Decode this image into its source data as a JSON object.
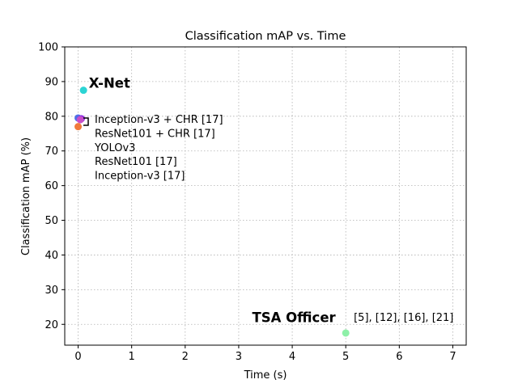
{
  "chart_data": {
    "type": "scatter",
    "title": "Classification mAP vs. Time",
    "xlabel": "Time (s)",
    "ylabel": "Classification mAP (%)",
    "xlim": [
      -0.25,
      7.25
    ],
    "ylim": [
      14,
      100
    ],
    "x_ticks": [
      0,
      1,
      2,
      3,
      4,
      5,
      6,
      7
    ],
    "y_ticks": [
      20,
      30,
      40,
      50,
      60,
      70,
      80,
      90,
      100
    ],
    "grid": true,
    "grid_style": "dotted",
    "points": [
      {
        "x": 0.1,
        "y": 87.5,
        "color": "#2bd4d4"
      },
      {
        "x": 0.0,
        "y": 79.5,
        "color": "#4f6fe8"
      },
      {
        "x": 0.06,
        "y": 79.3,
        "color": "#8a2be2"
      },
      {
        "x": 0.04,
        "y": 79.0,
        "color": "#c84fc8"
      },
      {
        "x": 0.0,
        "y": 77.0,
        "color": "#f07a3c"
      },
      {
        "x": 5.0,
        "y": 17.5,
        "color": "#8ef0a8"
      }
    ],
    "annotations": [
      {
        "text": "X-Net",
        "style": "bold",
        "x": 0.2,
        "y": 88.2
      },
      {
        "text": "TSA Officer",
        "style": "bold",
        "x": 3.25,
        "y": 20.6
      },
      {
        "text": "[5], [12], [16], [21]",
        "style": "normal",
        "x": 5.15,
        "y": 21.0
      }
    ],
    "legend_entries": [
      "Inception-v3 + CHR [17]",
      "ResNet101 + CHR [17]",
      "YOLOv3",
      "ResNet101 [17]",
      "Inception-v3 [17]"
    ]
  }
}
